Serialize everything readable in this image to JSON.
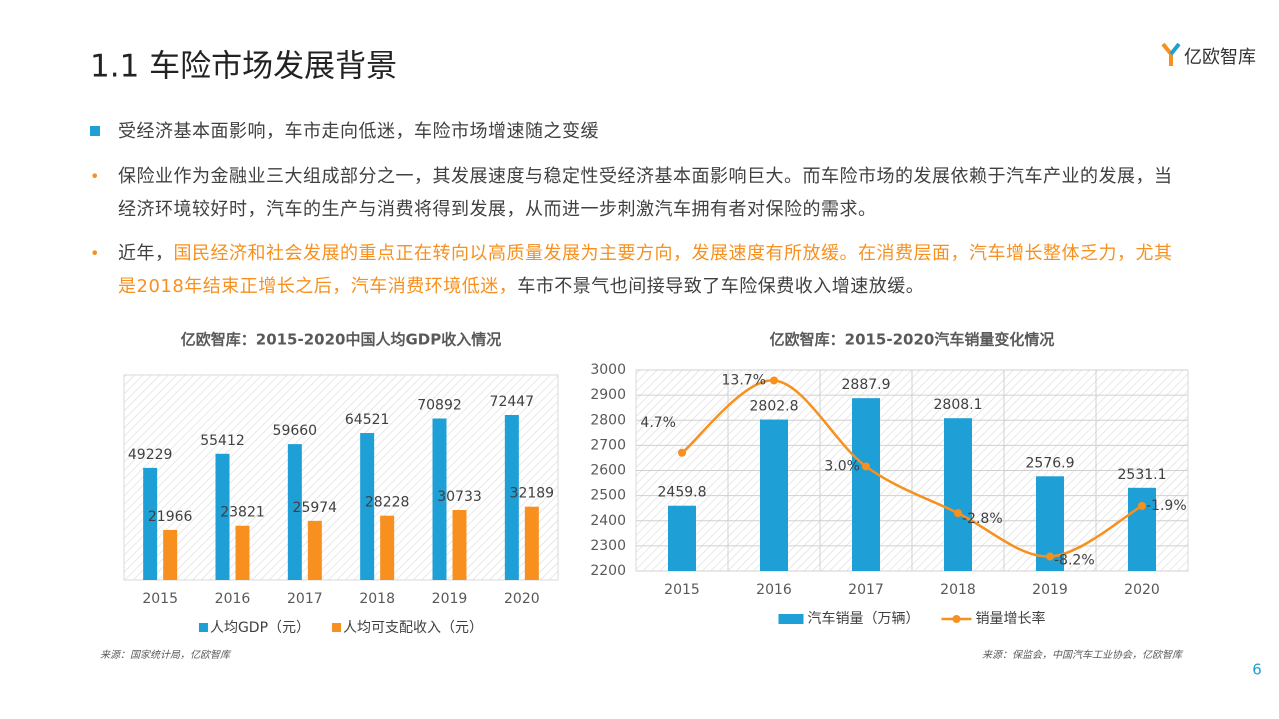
{
  "header": {
    "title": "1.1 车险市场发展背景",
    "logo": "亿欧智库"
  },
  "bullets": [
    {
      "marker": "square",
      "segments": [
        {
          "text": "受经济基本面影响，车市走向低迷，车险市场增速随之变缓",
          "highlight": false
        }
      ]
    },
    {
      "marker": "dot",
      "segments": [
        {
          "text": "保险业作为金融业三大组成部分之一，其发展速度与稳定性受经济基本面影响巨大。而车险市场的发展依赖于汽车产业的发展，当经济环境较好时，汽车的生产与消费将得到发展，从而进一步刺激汽车拥有者对保险的需求。",
          "highlight": false
        }
      ]
    },
    {
      "marker": "dot",
      "segments": [
        {
          "text": "近年，",
          "highlight": false
        },
        {
          "text": "国民经济和社会发展的重点正在转向以高质量发展为主要方向，发展速度有所放缓。在消费层面，汽车增长整体乏力，尤其是2018年结束正增长之后，汽车消费环境低迷，",
          "highlight": true
        },
        {
          "text": "车市不景气也间接导致了车险保费收入增速放缓。",
          "highlight": false
        }
      ]
    }
  ],
  "chart_data": [
    {
      "type": "bar",
      "title": "亿欧智库：2015-2020中国人均GDP收入情况",
      "categories": [
        "2015",
        "2016",
        "2017",
        "2018",
        "2019",
        "2020"
      ],
      "series": [
        {
          "name": "人均GDP（元）",
          "color": "#1e9fd6",
          "values": [
            49229,
            55412,
            59660,
            64521,
            70892,
            72447
          ]
        },
        {
          "name": "人均可支配收入（元）",
          "color": "#f7901e",
          "values": [
            21966,
            23821,
            25974,
            28228,
            30733,
            32189
          ]
        }
      ],
      "ylim": [
        0,
        90000
      ],
      "legend": "bottom",
      "source": "来源：国家统计局，亿欧智库"
    },
    {
      "type": "combo",
      "title": "亿欧智库：2015-2020汽车销量变化情况",
      "categories": [
        "2015",
        "2016",
        "2017",
        "2018",
        "2019",
        "2020"
      ],
      "series": [
        {
          "name": "汽车销量（万辆）",
          "type": "bar",
          "color": "#1e9fd6",
          "values": [
            2459.8,
            2802.8,
            2887.9,
            2808.1,
            2576.9,
            2531.1
          ]
        },
        {
          "name": "销量增长率",
          "type": "line",
          "axis": "y2",
          "color": "#f7901e",
          "values": [
            4.7,
            13.7,
            3.0,
            -2.8,
            -8.2,
            -1.9
          ],
          "value_labels": [
            "4.7%",
            "13.7%",
            "3.0%",
            "-2.8%",
            "-8.2%",
            "-1.9%"
          ]
        }
      ],
      "ylim": [
        2200,
        3000
      ],
      "yticks": [
        2200,
        2300,
        2400,
        2500,
        2600,
        2700,
        2800,
        2900,
        3000
      ],
      "y2lim": [
        -10,
        15
      ],
      "grid": true,
      "legend": "bottom",
      "source": "来源：保监会，中国汽车工业协会，亿欧智库"
    }
  ],
  "page_number": 6
}
